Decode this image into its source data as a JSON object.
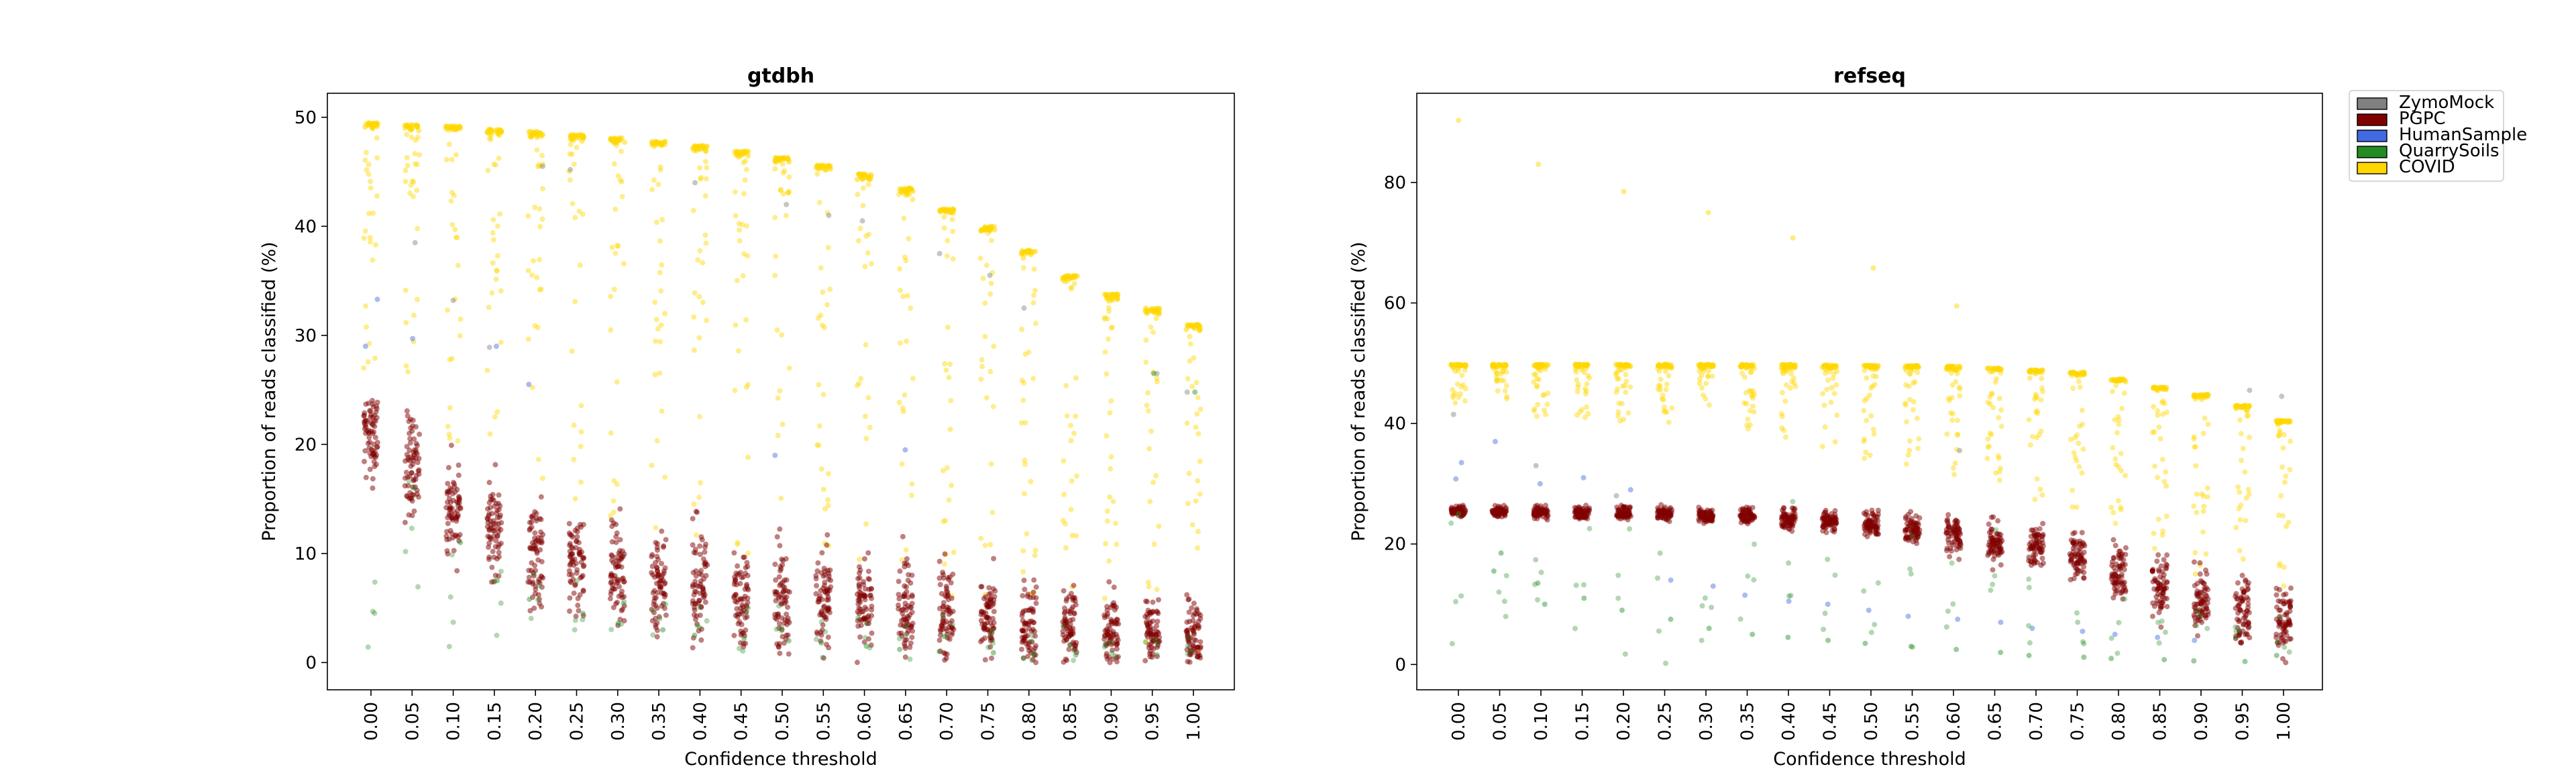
{
  "chart_data": [
    {
      "type": "scatter",
      "title": "gtdbh",
      "xlabel": "Confidence threshold",
      "ylabel": "Proportion of reads classified (%)",
      "x": [
        "0.00",
        "0.05",
        "0.10",
        "0.15",
        "0.20",
        "0.25",
        "0.30",
        "0.35",
        "0.40",
        "0.45",
        "0.50",
        "0.55",
        "0.60",
        "0.65",
        "0.70",
        "0.75",
        "0.80",
        "0.85",
        "0.90",
        "0.95",
        "1.00"
      ],
      "yticks": [
        "0",
        "10",
        "20",
        "30",
        "40",
        "50"
      ],
      "ylim": [
        -2.5,
        52.2
      ],
      "series": [
        {
          "name": "ZymoMock",
          "color": "#808080",
          "outliers": [
            [
              1,
              38.5
            ],
            [
              2,
              33.2
            ],
            [
              3,
              28.9
            ],
            [
              4,
              45.5
            ],
            [
              5,
              45.2
            ],
            [
              8,
              44.0
            ],
            [
              10,
              42.0
            ],
            [
              11,
              41.0
            ],
            [
              12,
              40.5
            ],
            [
              14,
              37.5
            ],
            [
              15,
              35.5
            ],
            [
              16,
              32.5
            ],
            [
              19,
              26.5
            ],
            [
              20,
              24.8
            ]
          ]
        },
        {
          "name": "PGPC",
          "color": "#800000",
          "center": [
            21.0,
            17.8,
            14.0,
            12.0,
            10.2,
            8.8,
            8.0,
            7.5,
            6.8,
            6.4,
            6.0,
            5.6,
            5.2,
            4.8,
            4.5,
            4.0,
            3.6,
            3.2,
            2.9,
            2.6,
            2.4
          ],
          "spread": [
            3.5,
            4.5,
            3.8,
            4.5,
            4.2,
            4.3,
            4.5,
            4.5,
            4.5,
            4.3,
            4.3,
            4.2,
            4.0,
            4.0,
            3.9,
            3.7,
            3.5,
            3.2,
            3.0,
            2.8,
            2.6
          ],
          "max": [
            24.5,
            24.5,
            24.2,
            24.0,
            23.8,
            23.5,
            23.3,
            23.0,
            22.6,
            22.2,
            21.6,
            21.0,
            20.4,
            19.0,
            17.8,
            17.0,
            15.0,
            13.0,
            12.0,
            10.0,
            9.5
          ]
        },
        {
          "name": "HumanSample",
          "color": "#4169e1",
          "outliers": [
            [
              0,
              33.3
            ],
            [
              0,
              29.0
            ],
            [
              1,
              29.7
            ],
            [
              3,
              29.0
            ],
            [
              4,
              25.5
            ],
            [
              10,
              19.0
            ],
            [
              13,
              19.5
            ]
          ]
        },
        {
          "name": "QuarrySoils",
          "color": "#228b22",
          "outliers": [
            [
              1,
              16.0
            ],
            [
              2,
              11.0
            ],
            [
              3,
              7.5
            ],
            [
              4,
              5.8
            ],
            [
              5,
              4.5
            ],
            [
              6,
              3.6
            ],
            [
              7,
              3.0
            ],
            [
              8,
              2.5
            ],
            [
              9,
              2.2
            ],
            [
              10,
              2.0
            ],
            [
              11,
              1.8
            ],
            [
              12,
              1.5
            ],
            [
              13,
              1.2
            ],
            [
              14,
              1.0
            ],
            [
              15,
              0.9
            ],
            [
              16,
              0.8
            ],
            [
              17,
              0.7
            ],
            [
              18,
              0.6
            ],
            [
              19,
              26.5
            ],
            [
              20,
              24.8
            ]
          ]
        },
        {
          "name": "COVID",
          "color": "#ffd700",
          "top": [
            49.5,
            49.3,
            49.2,
            48.9,
            48.7,
            48.4,
            48.1,
            47.8,
            47.4,
            46.9,
            46.3,
            45.6,
            44.8,
            43.5,
            41.6,
            40.0,
            37.8,
            35.5,
            33.8,
            32.5,
            31.0
          ],
          "tail_min": [
            27.0,
            24.0,
            20.0,
            18.0,
            16.0,
            14.0,
            12.0,
            11.0,
            10.0,
            10.0,
            9.0,
            8.5,
            8.0,
            8.0,
            6.0,
            5.5,
            5.0,
            3.0,
            2.0,
            1.5,
            1.0
          ]
        }
      ]
    },
    {
      "type": "scatter",
      "title": "refseq",
      "xlabel": "Confidence threshold",
      "ylabel": "Proportion of reads classified (%)",
      "x": [
        "0.00",
        "0.05",
        "0.10",
        "0.15",
        "0.20",
        "0.25",
        "0.30",
        "0.35",
        "0.40",
        "0.45",
        "0.50",
        "0.55",
        "0.60",
        "0.65",
        "0.70",
        "0.75",
        "0.80",
        "0.85",
        "0.90",
        "0.95",
        "1.00"
      ],
      "yticks": [
        "0",
        "20",
        "40",
        "60",
        "80"
      ],
      "ylim": [
        -4.2,
        94.8
      ],
      "series": [
        {
          "name": "ZymoMock",
          "color": "#808080",
          "outliers": [
            [
              0,
              41.5
            ],
            [
              2,
              33.0
            ],
            [
              4,
              28.0
            ],
            [
              12,
              35.5
            ],
            [
              19,
              45.5
            ],
            [
              20,
              44.5
            ]
          ]
        },
        {
          "name": "PGPC",
          "color": "#800000",
          "center": [
            25.5,
            25.4,
            25.3,
            25.2,
            25.1,
            25.0,
            24.8,
            24.6,
            24.2,
            23.8,
            23.2,
            22.5,
            21.6,
            20.5,
            19.2,
            17.8,
            15.5,
            13.0,
            11.0,
            9.0,
            7.5
          ],
          "spread": [
            0.8,
            0.8,
            0.9,
            0.9,
            1.0,
            1.0,
            1.1,
            1.2,
            1.4,
            1.5,
            1.8,
            2.2,
            2.6,
            3.0,
            3.4,
            3.8,
            4.2,
            4.5,
            4.8,
            5.0,
            5.2
          ],
          "max": [
            27.0,
            27.0,
            27.0,
            27.0,
            27.0,
            26.8,
            26.5,
            26.2,
            26.0,
            25.8,
            25.6,
            25.4,
            25.0,
            24.5,
            23.5,
            22.0,
            21.0,
            19.5,
            20.0,
            19.5,
            19.0
          ]
        },
        {
          "name": "HumanSample",
          "color": "#4169e1",
          "outliers": [
            [
              0,
              33.5
            ],
            [
              0,
              30.8
            ],
            [
              1,
              37.0
            ],
            [
              2,
              30.0
            ],
            [
              3,
              31.0
            ],
            [
              4,
              29.0
            ],
            [
              5,
              14.0
            ],
            [
              6,
              13.0
            ],
            [
              7,
              11.5
            ],
            [
              8,
              10.5
            ],
            [
              9,
              10.0
            ],
            [
              10,
              9.0
            ],
            [
              11,
              8.0
            ],
            [
              12,
              7.5
            ],
            [
              13,
              7.0
            ],
            [
              14,
              6.0
            ],
            [
              15,
              5.5
            ],
            [
              16,
              5.0
            ],
            [
              17,
              4.5
            ],
            [
              18,
              4.0
            ]
          ]
        },
        {
          "name": "QuarrySoils",
          "color": "#228b22",
          "outliers": [
            [
              0,
              25.0
            ],
            [
              1,
              18.5
            ],
            [
              1,
              15.5
            ],
            [
              2,
              13.5
            ],
            [
              2,
              10.0
            ],
            [
              3,
              11.0
            ],
            [
              4,
              9.0
            ],
            [
              5,
              7.5
            ],
            [
              6,
              6.0
            ],
            [
              7,
              5.0
            ],
            [
              8,
              4.5
            ],
            [
              9,
              4.0
            ],
            [
              10,
              3.5
            ],
            [
              11,
              3.0
            ],
            [
              12,
              2.5
            ],
            [
              13,
              2.0
            ],
            [
              14,
              1.5
            ],
            [
              15,
              1.2
            ],
            [
              16,
              1.0
            ],
            [
              17,
              0.8
            ],
            [
              18,
              0.6
            ],
            [
              19,
              0.5
            ],
            [
              20,
              1.5
            ]
          ]
        },
        {
          "name": "COVID",
          "color": "#ffd700",
          "top": [
            49.8,
            49.8,
            49.8,
            49.8,
            49.8,
            49.8,
            49.8,
            49.8,
            49.8,
            49.7,
            49.7,
            49.6,
            49.5,
            49.2,
            48.9,
            48.5,
            47.4,
            46.0,
            44.8,
            43.0,
            40.5
          ],
          "tail_min": [
            43.0,
            42.0,
            41.0,
            41.0,
            40.0,
            40.0,
            40.0,
            39.0,
            37.0,
            36.0,
            34.0,
            33.0,
            31.0,
            29.0,
            26.0,
            24.0,
            21.0,
            18.0,
            15.0,
            12.0,
            9.0
          ],
          "outliers": [
            [
              0,
              90.3
            ],
            [
              2,
              83.0
            ],
            [
              4,
              78.5
            ],
            [
              6,
              75.0
            ],
            [
              8,
              70.8
            ],
            [
              10,
              65.8
            ],
            [
              12,
              59.5
            ]
          ]
        }
      ]
    }
  ],
  "legend": {
    "placement": "outside-right",
    "items": [
      {
        "label": "ZymoMock",
        "color": "#808080"
      },
      {
        "label": "PGPC",
        "color": "#800000"
      },
      {
        "label": "HumanSample",
        "color": "#4169e1"
      },
      {
        "label": "QuarrySoils",
        "color": "#228b22"
      },
      {
        "label": "COVID",
        "color": "#ffd700"
      }
    ]
  }
}
